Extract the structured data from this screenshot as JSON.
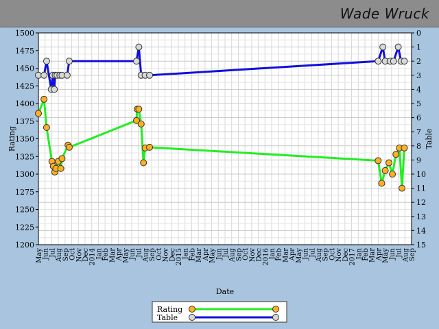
{
  "header": {
    "player_name": "Wade Wruck"
  },
  "colors": {
    "banner": "#8c8c8c",
    "background": "#a8c4de",
    "rating_line": "#22ee22",
    "rating_marker": "#ffb020",
    "table_line": "#1010dd",
    "table_marker": "#d8d8d8"
  },
  "chart_data": {
    "type": "line",
    "xlabel": "Date",
    "ylabel": "Rating",
    "y2label": "Table",
    "ylim": [
      1200,
      1500
    ],
    "y2lim": [
      15,
      0
    ],
    "xlim": [
      "2013-05-01",
      "2017-09-15"
    ],
    "grid": true,
    "legend_position": "bottom-center",
    "y_ticks": [
      1200,
      1225,
      1250,
      1275,
      1300,
      1325,
      1350,
      1375,
      1400,
      1425,
      1450,
      1475,
      1500
    ],
    "y2_ticks": [
      0,
      1,
      2,
      3,
      4,
      5,
      6,
      7,
      8,
      9,
      10,
      11,
      12,
      13,
      14,
      15
    ],
    "x_ticks": [
      {
        "date": "2013-05-01",
        "label": "May"
      },
      {
        "date": "2013-06-01",
        "label": "Jun"
      },
      {
        "date": "2013-07-01",
        "label": "Jul"
      },
      {
        "date": "2013-08-01",
        "label": "Aug"
      },
      {
        "date": "2013-09-01",
        "label": "Sep"
      },
      {
        "date": "2013-10-01",
        "label": "Oct"
      },
      {
        "date": "2013-11-01",
        "label": "Nov"
      },
      {
        "date": "2013-12-01",
        "label": "Dec"
      },
      {
        "date": "2014-01-01",
        "label": "2014"
      },
      {
        "date": "2014-02-01",
        "label": "Jan"
      },
      {
        "date": "2014-03-01",
        "label": "Feb"
      },
      {
        "date": "2014-04-01",
        "label": "Mar"
      },
      {
        "date": "2014-05-01",
        "label": "Apr"
      },
      {
        "date": "2014-06-01",
        "label": "May"
      },
      {
        "date": "2014-07-01",
        "label": "Jun"
      },
      {
        "date": "2014-08-01",
        "label": "Jul"
      },
      {
        "date": "2014-09-01",
        "label": "Aug"
      },
      {
        "date": "2014-10-01",
        "label": "Sep"
      },
      {
        "date": "2014-11-01",
        "label": "Oct"
      },
      {
        "date": "2014-12-01",
        "label": "Nov"
      },
      {
        "date": "2015-01-01",
        "label": "Dec"
      },
      {
        "date": "2015-02-01",
        "label": "2015"
      },
      {
        "date": "2015-03-01",
        "label": "Jan"
      },
      {
        "date": "2015-04-01",
        "label": "Feb"
      },
      {
        "date": "2015-05-01",
        "label": "Mar"
      },
      {
        "date": "2015-06-01",
        "label": "Apr"
      },
      {
        "date": "2015-07-01",
        "label": "May"
      },
      {
        "date": "2015-08-01",
        "label": "Jun"
      },
      {
        "date": "2015-09-01",
        "label": "Jul"
      },
      {
        "date": "2015-10-01",
        "label": "Aug"
      },
      {
        "date": "2015-11-01",
        "label": "Sep"
      },
      {
        "date": "2015-12-01",
        "label": "Oct"
      },
      {
        "date": "2016-01-01",
        "label": "Nov"
      },
      {
        "date": "2016-02-01",
        "label": "Dec"
      },
      {
        "date": "2016-03-01",
        "label": "2016"
      },
      {
        "date": "2016-04-01",
        "label": "Jan"
      },
      {
        "date": "2016-05-01",
        "label": "Feb"
      },
      {
        "date": "2016-06-01",
        "label": "Mar"
      },
      {
        "date": "2016-07-01",
        "label": "Apr"
      },
      {
        "date": "2016-08-01",
        "label": "May"
      },
      {
        "date": "2016-09-01",
        "label": "Jun"
      },
      {
        "date": "2016-10-01",
        "label": "Jul"
      },
      {
        "date": "2016-11-01",
        "label": "Aug"
      },
      {
        "date": "2016-12-01",
        "label": "Sep"
      },
      {
        "date": "2017-01-01",
        "label": "Oct"
      },
      {
        "date": "2017-02-01",
        "label": "Nov"
      },
      {
        "date": "2017-03-01",
        "label": "Dec"
      },
      {
        "date": "2017-04-01",
        "label": "2017"
      },
      {
        "date": "2017-05-01",
        "label": "Jan"
      },
      {
        "date": "2017-06-01",
        "label": "Feb"
      },
      {
        "date": "2017-07-01",
        "label": "Mar"
      },
      {
        "date": "2017-08-01",
        "label": "Apr"
      },
      {
        "date": "2017-09-01",
        "label": "May"
      },
      {
        "date": "2017-09-20",
        "label": "Jun"
      },
      {
        "date": "2017-10-10",
        "label": "Jul"
      },
      {
        "date": "2017-10-30",
        "label": "Aug"
      },
      {
        "date": "2017-11-20",
        "label": "Sep"
      }
    ],
    "series": [
      {
        "name": "Rating",
        "axis": "left",
        "points": [
          [
            "2013-05-01",
            1386
          ],
          [
            "2013-05-25",
            1406
          ],
          [
            "2013-06-05",
            1366
          ],
          [
            "2013-06-28",
            1318
          ],
          [
            "2013-07-04",
            1311
          ],
          [
            "2013-07-10",
            1303
          ],
          [
            "2013-07-15",
            1308
          ],
          [
            "2013-07-25",
            1318
          ],
          [
            "2013-08-05",
            1308
          ],
          [
            "2013-08-10",
            1322
          ],
          [
            "2013-09-05",
            1341
          ],
          [
            "2013-09-10",
            1338
          ],
          [
            "2014-06-25",
            1376
          ],
          [
            "2014-06-28",
            1392
          ],
          [
            "2014-07-05",
            1392
          ],
          [
            "2014-07-15",
            1371
          ],
          [
            "2014-07-25",
            1316
          ],
          [
            "2014-08-01",
            1337
          ],
          [
            "2014-08-20",
            1338
          ],
          [
            "2017-04-25",
            1319
          ],
          [
            "2017-05-10",
            1287
          ],
          [
            "2017-05-25",
            1305
          ],
          [
            "2017-06-10",
            1316
          ],
          [
            "2017-06-25",
            1300
          ],
          [
            "2017-07-10",
            1328
          ],
          [
            "2017-07-25",
            1337
          ],
          [
            "2017-08-05",
            1280
          ],
          [
            "2017-08-15",
            1337
          ]
        ]
      },
      {
        "name": "Table",
        "axis": "right",
        "points": [
          [
            "2013-05-01",
            3
          ],
          [
            "2013-05-25",
            3
          ],
          [
            "2013-06-05",
            2
          ],
          [
            "2013-06-25",
            4
          ],
          [
            "2013-07-01",
            3
          ],
          [
            "2013-07-08",
            4
          ],
          [
            "2013-07-12",
            3
          ],
          [
            "2013-07-20",
            3
          ],
          [
            "2013-08-01",
            3
          ],
          [
            "2013-08-10",
            3
          ],
          [
            "2013-09-01",
            3
          ],
          [
            "2013-09-10",
            2
          ],
          [
            "2014-06-25",
            2
          ],
          [
            "2014-07-05",
            1
          ],
          [
            "2014-07-15",
            3
          ],
          [
            "2014-08-01",
            3
          ],
          [
            "2014-08-20",
            3
          ],
          [
            "2017-04-25",
            2
          ],
          [
            "2017-05-15",
            1
          ],
          [
            "2017-05-25",
            2
          ],
          [
            "2017-06-15",
            2
          ],
          [
            "2017-06-30",
            2
          ],
          [
            "2017-07-20",
            1
          ],
          [
            "2017-08-01",
            2
          ],
          [
            "2017-08-15",
            2
          ]
        ]
      }
    ]
  }
}
